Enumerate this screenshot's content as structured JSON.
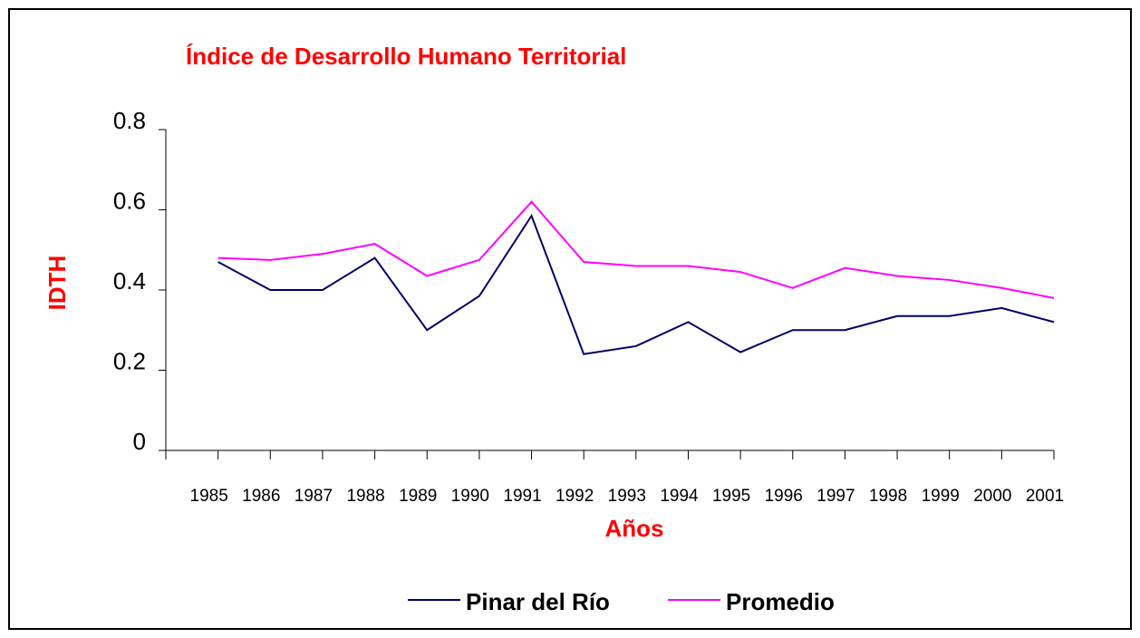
{
  "chart_data": {
    "type": "line",
    "title": "Índice de Desarrollo Humano Territorial",
    "x_label": "Años",
    "y_label": "IDTH",
    "categories": [
      "1985",
      "1986",
      "1987",
      "1988",
      "1989",
      "1990",
      "1991",
      "1992",
      "1993",
      "1994",
      "1995",
      "1996",
      "1997",
      "1998",
      "1999",
      "2000",
      "2001"
    ],
    "series": [
      {
        "name": "Pinar del  Río",
        "color": "#000066",
        "values": [
          0.47,
          0.4,
          0.4,
          0.48,
          0.3,
          0.385,
          0.585,
          0.24,
          0.26,
          0.32,
          0.245,
          0.3,
          0.3,
          0.335,
          0.335,
          0.355,
          0.32
        ]
      },
      {
        "name": "Promedio",
        "color": "#ff00ff",
        "values": [
          0.48,
          0.475,
          0.49,
          0.515,
          0.435,
          0.475,
          0.62,
          0.47,
          0.46,
          0.46,
          0.445,
          0.405,
          0.455,
          0.435,
          0.425,
          0.405,
          0.38
        ]
      }
    ],
    "ylim": [
      0,
      0.8
    ],
    "yticks": [
      0,
      0.2,
      0.4,
      0.6,
      0.8
    ],
    "legend": "bottom"
  }
}
